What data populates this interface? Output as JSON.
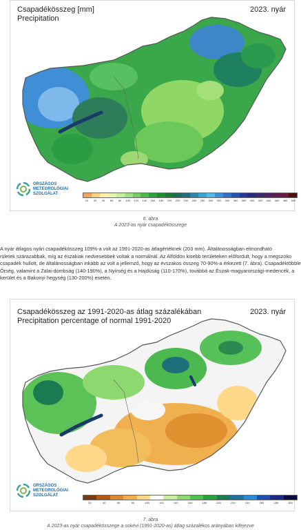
{
  "map1": {
    "title_line1": "Csapadékösszeg [mm]",
    "title_line2": "Precipitation",
    "season": "2023. nyár",
    "legend_ticks": [
      "10",
      "20",
      "40",
      "60",
      "80",
      "100",
      "120",
      "140",
      "160",
      "180",
      "200",
      "220",
      "240",
      "260",
      "280",
      "300",
      "320",
      "340",
      "360",
      "380",
      "400",
      "420",
      "440",
      "460",
      "480",
      "500"
    ],
    "legend_colors": [
      "#f4a460",
      "#ffd27f",
      "#fff2a8",
      "#e6f5b0",
      "#c8eda0",
      "#a0e080",
      "#74cf62",
      "#48bb48",
      "#2aa53a",
      "#1c9030",
      "#1a7a3a",
      "#1c6d55",
      "#1f6f7a",
      "#2a8aa8",
      "#3aa3d6",
      "#4ebbee",
      "#3a8fd6",
      "#2e6ec6",
      "#2950b0",
      "#263a98",
      "#2a2a80",
      "#3a2a70",
      "#4a2560",
      "#5a2050",
      "#6a1a3a",
      "#4a1010"
    ],
    "caption_num": "6. ábra",
    "caption_text": "A 2023-as nyár csapadékösszege"
  },
  "paragraph": [
    "A nyár átlagos nyári csapadékösszeg 109%-a volt az 1991-2020-as átlagértéknek (203 mm). Általánosságban elmondható",
    "rületek szárazabbak, míg az északiak nedvesebbek voltak a normálnál. Az Alföldön kisebb területeken előfordult, hogy a megszoko",
    "csapadék hullott, de általánosságban inkább az volt a jellemző, hogy az évszakos összeg 70-90%-a érkezett (7. ábra). Csapadéktöbblet",
    "Őrség, valamint a Zalai-dombság (140-190%), a Nyírség és a Hajdúság (110-170%), továbbá az Észak-magyarországi-medencék, a",
    "kerület és a Bakonyi hegység (130-200%) esetén."
  ],
  "map2": {
    "title_line1": "Csapadékösszeg az 1991-2020-as átlag százalékában",
    "title_line2": "Precipitation percentage of normal 1991-2020",
    "season": "2023. nyár",
    "legend_ticks": [
      "20",
      "40",
      "60",
      "80",
      "100",
      "120",
      "140",
      "160",
      "180",
      "200",
      "220",
      "240",
      "260",
      "280",
      "300"
    ],
    "legend_colors": [
      "#7a3a10",
      "#b05a18",
      "#d98a30",
      "#f0b050",
      "#ffd88a",
      "#ffffff",
      "#c8eda0",
      "#8ed870",
      "#52c050",
      "#2aa040",
      "#1c7a50",
      "#1f6f9a",
      "#2a8ad6",
      "#1e50b0",
      "#1a2a80",
      "#0c0c40"
    ],
    "caption_num": "7. ábra",
    "caption_text": "A 2023-as nyár csapadékösszege a sokévi (1991-2020-as) átlag százalékos arányában kifejezve"
  },
  "logo": {
    "line1": "ORSZÁGOS",
    "line2": "METEOROLÓGIAI",
    "line3": "SZOLGÁLAT"
  }
}
